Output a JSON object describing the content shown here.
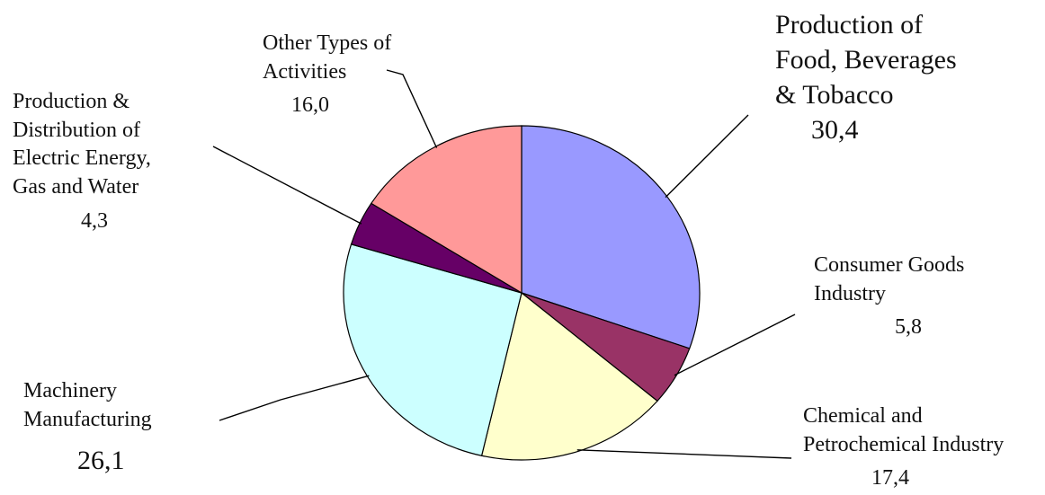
{
  "chart_data": {
    "type": "pie",
    "title": "",
    "slices": [
      {
        "label_lines": [
          "Production of",
          "Food, Beverages",
          "& Tobacco"
        ],
        "value_label": "30,4",
        "value": 30.4,
        "color": "#9999FF"
      },
      {
        "label_lines": [
          "Consumer Goods",
          "Industry"
        ],
        "value_label": "5,8",
        "value": 5.8,
        "color": "#993366"
      },
      {
        "label_lines": [
          "Chemical and",
          "Petrochemical Industry"
        ],
        "value_label": "17,4",
        "value": 17.4,
        "color": "#FFFFCC"
      },
      {
        "label_lines": [
          "Machinery",
          "Manufacturing"
        ],
        "value_label": "26,1",
        "value": 26.1,
        "color": "#CCFFFF"
      },
      {
        "label_lines": [
          "Production &",
          "Distribution of",
          "Electric Energy,",
          "Gas and Water"
        ],
        "value_label": "4,3",
        "value": 4.3,
        "color": "#660066"
      },
      {
        "label_lines": [
          "Other Types of",
          "Activities"
        ],
        "value_label": "16,0",
        "value": 16.0,
        "color": "#FF9999"
      }
    ],
    "start": "12 o'clock",
    "direction": "clockwise",
    "legend": "none"
  }
}
